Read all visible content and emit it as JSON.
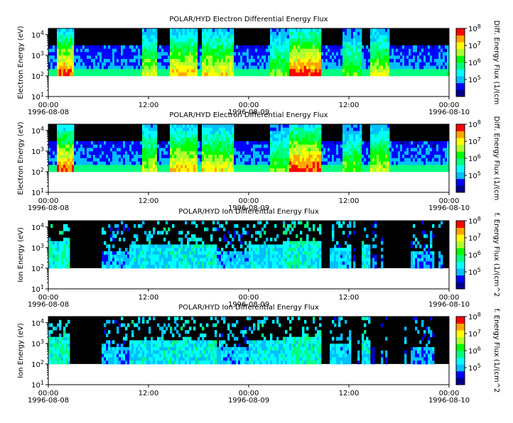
{
  "colors": {
    "background": "#000000",
    "fill_band": "#ffffff",
    "colormap": [
      "#00008b",
      "#0000ff",
      "#00bfff",
      "#00ffff",
      "#00ff7f",
      "#00ff00",
      "#adff2f",
      "#ffff00",
      "#ffa500",
      "#ff0000"
    ]
  },
  "chart_data": [
    {
      "type": "heatmap",
      "title": "POLAR/HYD  Electron Differential Energy Flux",
      "ylabel": "Electron Energy (eV)",
      "yscale": "log",
      "ylim": [
        10,
        20000
      ],
      "yticks": [
        "10^1",
        "10^2",
        "10^3",
        "10^4"
      ],
      "xticks": [
        {
          "time": "00:00",
          "date": "1996-08-08"
        },
        {
          "time": "12:00",
          "date": ""
        },
        {
          "time": "00:00",
          "date": "1996-08-09"
        },
        {
          "time": "12:00",
          "date": ""
        },
        {
          "time": "00:00",
          "date": "1996-08-10"
        }
      ],
      "colorbar": {
        "label": "Diff. Energy Flux (1/(cm",
        "scale": "log",
        "range": [
          10000.0,
          100000000.0
        ],
        "ticks": [
          "10^5",
          "10^6",
          "10^7",
          "10^8"
        ]
      },
      "min_energy_eV": 100
    },
    {
      "type": "heatmap",
      "title": "POLAR/HYD  Electron Differential Energy Flux",
      "ylabel": "Electron Energy (eV)",
      "yscale": "log",
      "ylim": [
        10,
        20000
      ],
      "yticks": [
        "10^1",
        "10^2",
        "10^3",
        "10^4"
      ],
      "xticks": [
        {
          "time": "00:00",
          "date": "1996-08-08"
        },
        {
          "time": "12:00",
          "date": ""
        },
        {
          "time": "00:00",
          "date": "1996-08-09"
        },
        {
          "time": "12:00",
          "date": ""
        },
        {
          "time": "00:00",
          "date": "1996-08-10"
        }
      ],
      "colorbar": {
        "label": "Diff. Energy Flux (1/(cm",
        "scale": "log",
        "range": [
          10000.0,
          100000000.0
        ],
        "ticks": [
          "10^5",
          "10^6",
          "10^7",
          "10^8"
        ]
      },
      "min_energy_eV": 100
    },
    {
      "type": "heatmap",
      "title": "POLAR/HYD  Ion Differential Energy Flux",
      "ylabel": "Ion Energy (eV)",
      "yscale": "log",
      "ylim": [
        10,
        20000
      ],
      "yticks": [
        "10^1",
        "10^2",
        "10^3",
        "10^4"
      ],
      "xticks": [
        {
          "time": "00:00",
          "date": "1996-08-08"
        },
        {
          "time": "12:00",
          "date": ""
        },
        {
          "time": "00:00",
          "date": "1996-08-09"
        },
        {
          "time": "12:00",
          "date": ""
        },
        {
          "time": "00:00",
          "date": "1996-08-10"
        }
      ],
      "colorbar": {
        "label": "f. Energy Flux (1/(cm^2",
        "scale": "log",
        "range": [
          10000.0,
          100000000.0
        ],
        "ticks": [
          "10^5",
          "10^6",
          "10^7",
          "10^8"
        ]
      },
      "min_energy_eV": 100
    },
    {
      "type": "heatmap",
      "title": "POLAR/HYD  Ion Differential Energy Flux",
      "ylabel": "Ion Energy (eV)",
      "yscale": "log",
      "ylim": [
        10,
        20000
      ],
      "yticks": [
        "10^1",
        "10^2",
        "10^3",
        "10^4"
      ],
      "xticks": [
        {
          "time": "00:00",
          "date": "1996-08-08"
        },
        {
          "time": "12:00",
          "date": ""
        },
        {
          "time": "00:00",
          "date": "1996-08-09"
        },
        {
          "time": "12:00",
          "date": ""
        },
        {
          "time": "00:00",
          "date": "1996-08-10"
        }
      ],
      "colorbar": {
        "label": "f. Energy Flux (1/(cm^2",
        "scale": "log",
        "range": [
          10000.0,
          100000000.0
        ],
        "ticks": [
          "10^5",
          "10^6",
          "10^7",
          "10^8"
        ]
      },
      "min_energy_eV": 100
    }
  ]
}
